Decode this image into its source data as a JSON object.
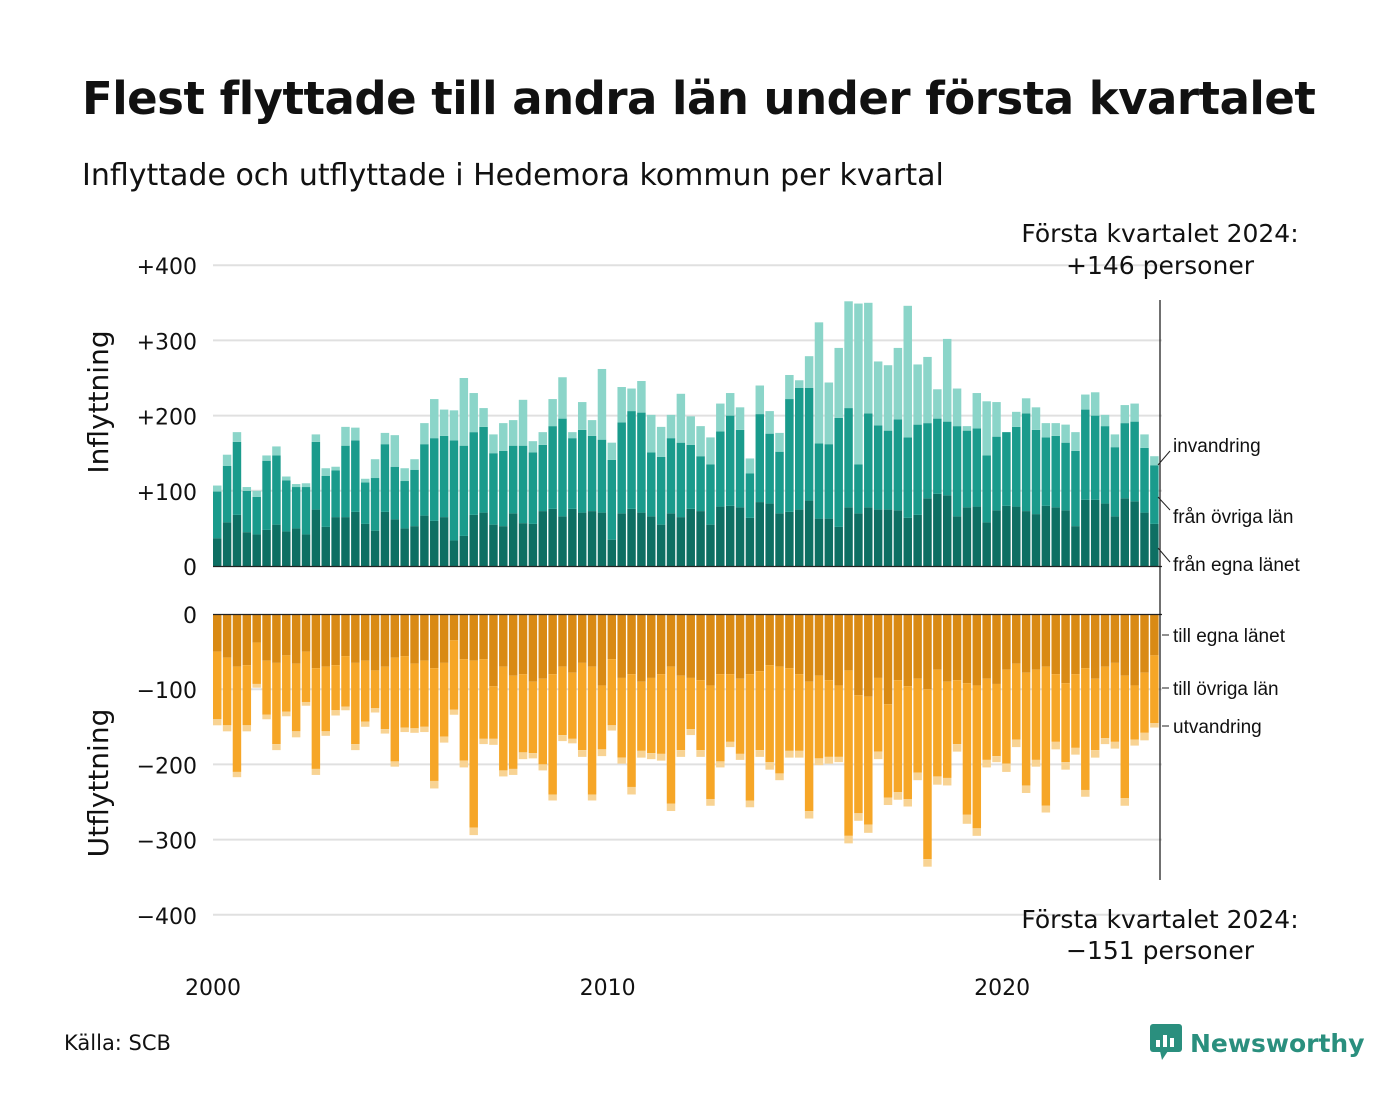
{
  "title": "Flest flyttade till andra län under första kvartalet",
  "subtitle": "Inflyttade och utflyttade i Hedemora kommun per kvartal",
  "source": "Källa: SCB",
  "brand": "Newsworthy",
  "colors": {
    "in_own": "#0e6f63",
    "in_other": "#1a9b8c",
    "in_imm": "#8bd5c9",
    "out_own": "#d98a14",
    "out_other": "#f6a627",
    "out_emi": "#f8d393",
    "grid": "#e0e0e0",
    "brand": "#2a8f7e"
  },
  "chart_data": [
    {
      "type": "bar",
      "stacked": true,
      "ylabel": "Inflyttning",
      "yticks": [
        "+400",
        "+300",
        "+200",
        "+100",
        "0"
      ],
      "ylim": [
        0,
        400
      ],
      "xlabels": [
        "2000",
        "2010",
        "2020"
      ],
      "x_start": "2000 Q1",
      "x_end": "2024 Q1",
      "series_labels": [
        "invandring",
        "från övriga län",
        "från egna länet"
      ],
      "annotation": [
        "Första kvartalet 2024:",
        "+146 personer"
      ],
      "series": [
        {
          "name": "från egna länet",
          "values": [
            37,
            58,
            68,
            45,
            42,
            48,
            55,
            46,
            50,
            42,
            75,
            52,
            65,
            65,
            72,
            56,
            47,
            72,
            62,
            50,
            53,
            67,
            60,
            65,
            34,
            40,
            68,
            71,
            55,
            53,
            70,
            57,
            56,
            73,
            76,
            66,
            76,
            71,
            73,
            71,
            35,
            70,
            76,
            71,
            66,
            55,
            70,
            65,
            76,
            73,
            55,
            79,
            80,
            78,
            64,
            85,
            83,
            70,
            72,
            75,
            87,
            63,
            63,
            52,
            78,
            70,
            78,
            75,
            75,
            74,
            64,
            68,
            90,
            96,
            94,
            66,
            78,
            79,
            58,
            74,
            80,
            79,
            73,
            69,
            80,
            78,
            74,
            53,
            88,
            88,
            83,
            66,
            90,
            86,
            71,
            56
          ]
        },
        {
          "name": "från övriga län",
          "values": [
            62,
            75,
            97,
            55,
            50,
            92,
            92,
            68,
            55,
            63,
            90,
            68,
            62,
            95,
            95,
            55,
            70,
            90,
            70,
            63,
            75,
            95,
            110,
            108,
            133,
            120,
            110,
            114,
            95,
            100,
            90,
            103,
            95,
            88,
            110,
            130,
            94,
            110,
            100,
            97,
            106,
            121,
            130,
            133,
            85,
            90,
            100,
            99,
            85,
            73,
            80,
            100,
            120,
            103,
            59,
            117,
            93,
            82,
            150,
            162,
            150,
            100,
            99,
            145,
            132,
            65,
            125,
            112,
            105,
            121,
            107,
            120,
            100,
            100,
            98,
            120,
            102,
            104,
            89,
            98,
            98,
            106,
            130,
            112,
            91,
            95,
            90,
            100,
            120,
            112,
            103,
            92,
            100,
            106,
            86,
            78
          ]
        },
        {
          "name": "invandring",
          "values": [
            8,
            15,
            13,
            5,
            8,
            7,
            12,
            5,
            4,
            5,
            10,
            10,
            5,
            25,
            17,
            5,
            25,
            15,
            42,
            17,
            14,
            28,
            52,
            35,
            40,
            90,
            52,
            25,
            25,
            37,
            34,
            61,
            15,
            17,
            36,
            55,
            8,
            37,
            21,
            94,
            23,
            47,
            30,
            42,
            50,
            40,
            31,
            65,
            38,
            40,
            36,
            37,
            30,
            30,
            20,
            38,
            30,
            25,
            32,
            10,
            42,
            161,
            82,
            93,
            142,
            214,
            147,
            85,
            87,
            95,
            175,
            80,
            88,
            39,
            110,
            50,
            6,
            47,
            72,
            46,
            0,
            20,
            20,
            30,
            19,
            17,
            24,
            25,
            20,
            31,
            15,
            17,
            24,
            24,
            18,
            12
          ]
        }
      ]
    },
    {
      "type": "bar",
      "stacked": true,
      "ylabel": "Utflyttning",
      "yticks": [
        "0",
        "−100",
        "−200",
        "−300",
        "−400"
      ],
      "ylim": [
        -400,
        0
      ],
      "xlabels": [
        "2000",
        "2010",
        "2020"
      ],
      "x_start": "2000 Q1",
      "x_end": "2024 Q1",
      "series_labels": [
        "till egna länet",
        "till övriga län",
        "utvandring"
      ],
      "annotation": [
        "Första kvartalet 2024:",
        "−151 personer"
      ],
      "series": [
        {
          "name": "till egna länet",
          "values": [
            -50,
            -58,
            -70,
            -68,
            -38,
            -62,
            -65,
            -55,
            -66,
            -50,
            -72,
            -70,
            -68,
            -56,
            -65,
            -62,
            -75,
            -70,
            -58,
            -56,
            -66,
            -62,
            -72,
            -65,
            -35,
            -60,
            -62,
            -60,
            -96,
            -70,
            -82,
            -80,
            -90,
            -86,
            -80,
            -70,
            -78,
            -65,
            -70,
            -95,
            -60,
            -85,
            -80,
            -90,
            -85,
            -80,
            -70,
            -82,
            -85,
            -88,
            -95,
            -80,
            -80,
            -86,
            -80,
            -76,
            -68,
            -70,
            -72,
            -80,
            -90,
            -82,
            -88,
            -95,
            -75,
            -108,
            -110,
            -85,
            -120,
            -88,
            -96,
            -86,
            -100,
            -74,
            -90,
            -88,
            -92,
            -95,
            -86,
            -93,
            -74,
            -66,
            -78,
            -74,
            -70,
            -80,
            -92,
            -80,
            -72,
            -86,
            -70,
            -65,
            -82,
            -95,
            -78,
            -55
          ]
        },
        {
          "name": "till övriga län",
          "values": [
            -90,
            -90,
            -140,
            -80,
            -55,
            -72,
            -108,
            -75,
            -90,
            -67,
            -134,
            -86,
            -60,
            -67,
            -108,
            -81,
            -50,
            -83,
            -138,
            -95,
            -86,
            -88,
            -150,
            -98,
            -92,
            -135,
            -222,
            -106,
            -70,
            -138,
            -124,
            -104,
            -95,
            -114,
            -160,
            -91,
            -88,
            -116,
            -170,
            -85,
            -88,
            -106,
            -150,
            -92,
            -100,
            -106,
            -182,
            -99,
            -68,
            -93,
            -151,
            -116,
            -90,
            -100,
            -168,
            -105,
            -129,
            -142,
            -110,
            -102,
            -172,
            -110,
            -102,
            -95,
            -220,
            -157,
            -170,
            -98,
            -124,
            -149,
            -150,
            -125,
            -226,
            -142,
            -128,
            -85,
            -175,
            -190,
            -108,
            -96,
            -125,
            -101,
            -150,
            -120,
            -185,
            -90,
            -105,
            -98,
            -162,
            -95,
            -95,
            -105,
            -163,
            -72,
            -80,
            -90
          ]
        },
        {
          "name": "utvandring",
          "values": [
            -8,
            -8,
            -7,
            -8,
            -5,
            -6,
            -8,
            -6,
            -8,
            -5,
            -8,
            -6,
            -7,
            -5,
            -8,
            -7,
            -6,
            -6,
            -7,
            -6,
            -6,
            -7,
            -10,
            -8,
            -7,
            -9,
            -10,
            -7,
            -8,
            -8,
            -8,
            -9,
            -7,
            -8,
            -8,
            -8,
            -6,
            -9,
            -8,
            -9,
            -7,
            -8,
            -10,
            -9,
            -8,
            -9,
            -10,
            -9,
            -8,
            -9,
            -9,
            -8,
            -7,
            -8,
            -9,
            -9,
            -10,
            -9,
            -9,
            -9,
            -10,
            -9,
            -9,
            -7,
            -10,
            -10,
            -11,
            -10,
            -10,
            -10,
            -10,
            -10,
            -10,
            -11,
            -10,
            -10,
            -12,
            -10,
            -10,
            -8,
            -11,
            -10,
            -10,
            -9,
            -9,
            -10,
            -10,
            -9,
            -9,
            -10,
            -8,
            -9,
            -10,
            -8,
            -10,
            -6
          ]
        }
      ]
    }
  ]
}
